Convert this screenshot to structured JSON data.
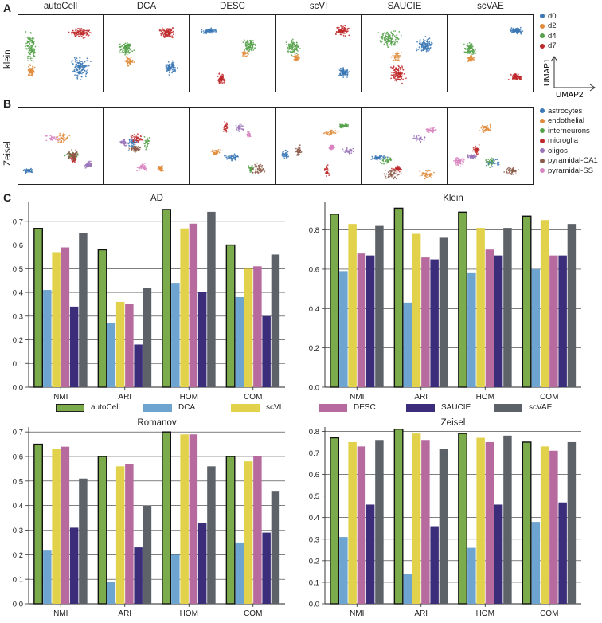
{
  "panels": {
    "a": "A",
    "b": "B",
    "c": "C"
  },
  "methods": [
    "autoCell",
    "DCA",
    "DESC",
    "scVI",
    "SAUCIE",
    "scVAE"
  ],
  "row_labels": {
    "klein": "klein",
    "zeisel": "Zeisel"
  },
  "umap_axes": {
    "y": "UMAP1",
    "x": "UMAP2"
  },
  "legend_klein": [
    {
      "label": "d0",
      "color": "#3b78b5"
    },
    {
      "label": "d2",
      "color": "#e08c3c"
    },
    {
      "label": "d4",
      "color": "#55a14a"
    },
    {
      "label": "d7",
      "color": "#c0292b"
    }
  ],
  "legend_zeisel": [
    {
      "label": "astrocytes",
      "color": "#3b78b5"
    },
    {
      "label": "endothelial",
      "color": "#e08c3c"
    },
    {
      "label": "interneurons",
      "color": "#55a14a"
    },
    {
      "label": "microglia",
      "color": "#c0292b"
    },
    {
      "label": "oligos",
      "color": "#9a74b8"
    },
    {
      "label": "pyramidal-CA1",
      "color": "#8b5a4a"
    },
    {
      "label": "pyramidal-SS",
      "color": "#d884c0"
    }
  ],
  "series_styles": [
    {
      "name": "autoCell",
      "color": "#7cab4c",
      "border": "#111111"
    },
    {
      "name": "DCA",
      "color": "#6da4d0",
      "border": "none"
    },
    {
      "name": "scVI",
      "color": "#e2d24b",
      "border": "none"
    },
    {
      "name": "DESC",
      "color": "#b66a9e",
      "border": "none"
    },
    {
      "name": "SAUCIE",
      "color": "#3c2d7a",
      "border": "none"
    },
    {
      "name": "scVAE",
      "color": "#5c6268",
      "border": "none"
    }
  ],
  "chart_data": [
    {
      "type": "bar",
      "title": "AD",
      "categories": [
        "NMI",
        "ARI",
        "HOM",
        "COM"
      ],
      "ylim": [
        0,
        0.78
      ],
      "yticks": [
        "0.0",
        "0.1",
        "0.2",
        "0.3",
        "0.4",
        "0.5",
        "0.6",
        "0.7"
      ],
      "series": [
        {
          "name": "autoCell",
          "values": [
            0.67,
            0.58,
            0.75,
            0.6
          ]
        },
        {
          "name": "DCA",
          "values": [
            0.41,
            0.27,
            0.44,
            0.38
          ]
        },
        {
          "name": "scVI",
          "values": [
            0.57,
            0.36,
            0.67,
            0.5
          ]
        },
        {
          "name": "DESC",
          "values": [
            0.59,
            0.35,
            0.69,
            0.51
          ]
        },
        {
          "name": "SAUCIE",
          "values": [
            0.34,
            0.18,
            0.4,
            0.3
          ]
        },
        {
          "name": "scVAE",
          "values": [
            0.65,
            0.42,
            0.74,
            0.56
          ]
        }
      ]
    },
    {
      "type": "bar",
      "title": "Klein",
      "categories": [
        "NMI",
        "ARI",
        "HOM",
        "COM"
      ],
      "ylim": [
        0,
        0.94
      ],
      "yticks": [
        "0.0",
        "0.2",
        "0.4",
        "0.6",
        "0.8"
      ],
      "series": [
        {
          "name": "autoCell",
          "values": [
            0.88,
            0.91,
            0.89,
            0.87
          ]
        },
        {
          "name": "DCA",
          "values": [
            0.59,
            0.43,
            0.58,
            0.6
          ]
        },
        {
          "name": "scVI",
          "values": [
            0.83,
            0.78,
            0.81,
            0.85
          ]
        },
        {
          "name": "DESC",
          "values": [
            0.68,
            0.66,
            0.7,
            0.67
          ]
        },
        {
          "name": "SAUCIE",
          "values": [
            0.67,
            0.65,
            0.67,
            0.67
          ]
        },
        {
          "name": "scVAE",
          "values": [
            0.82,
            0.76,
            0.81,
            0.83
          ]
        }
      ]
    },
    {
      "type": "bar",
      "title": "Romanov",
      "categories": [
        "NMI",
        "ARI",
        "HOM",
        "COM"
      ],
      "ylim": [
        0,
        0.72
      ],
      "yticks": [
        "0.0",
        "0.1",
        "0.2",
        "0.3",
        "0.4",
        "0.5",
        "0.6",
        "0.7"
      ],
      "series": [
        {
          "name": "autoCell",
          "values": [
            0.65,
            0.6,
            0.7,
            0.6
          ]
        },
        {
          "name": "DCA",
          "values": [
            0.22,
            0.09,
            0.2,
            0.25
          ]
        },
        {
          "name": "scVI",
          "values": [
            0.63,
            0.56,
            0.69,
            0.58
          ]
        },
        {
          "name": "DESC",
          "values": [
            0.64,
            0.57,
            0.69,
            0.6
          ]
        },
        {
          "name": "SAUCIE",
          "values": [
            0.31,
            0.23,
            0.33,
            0.29
          ]
        },
        {
          "name": "scVAE",
          "values": [
            0.51,
            0.4,
            0.56,
            0.46
          ]
        }
      ]
    },
    {
      "type": "bar",
      "title": "Zeisel",
      "categories": [
        "NMI",
        "ARI",
        "HOM",
        "COM"
      ],
      "ylim": [
        0,
        0.82
      ],
      "yticks": [
        "0.0",
        "0.1",
        "0.2",
        "0.3",
        "0.4",
        "0.5",
        "0.6",
        "0.7",
        "0.8"
      ],
      "series": [
        {
          "name": "autoCell",
          "values": [
            0.77,
            0.81,
            0.79,
            0.75
          ]
        },
        {
          "name": "DCA",
          "values": [
            0.31,
            0.14,
            0.26,
            0.38
          ]
        },
        {
          "name": "scVI",
          "values": [
            0.75,
            0.79,
            0.77,
            0.73
          ]
        },
        {
          "name": "DESC",
          "values": [
            0.73,
            0.76,
            0.75,
            0.71
          ]
        },
        {
          "name": "SAUCIE",
          "values": [
            0.46,
            0.36,
            0.46,
            0.47
          ]
        },
        {
          "name": "scVAE",
          "values": [
            0.76,
            0.72,
            0.78,
            0.75
          ]
        }
      ]
    }
  ]
}
